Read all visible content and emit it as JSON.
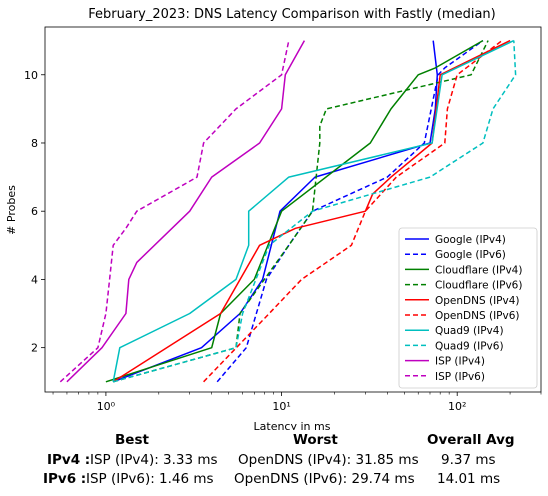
{
  "chart_data": {
    "type": "line",
    "title": "February_2023: DNS Latency Comparison with Fastly (median)",
    "xlabel": "Latency in ms",
    "ylabel": "# Probes",
    "xscale": "log",
    "xlim": [
      0.45,
      300
    ],
    "ylim": [
      0.7,
      11.4
    ],
    "xticks": [
      {
        "value": 1,
        "label": "10⁰"
      },
      {
        "value": 10,
        "label": "10¹"
      },
      {
        "value": 100,
        "label": "10²"
      }
    ],
    "yticks": [
      2,
      4,
      6,
      8,
      10
    ],
    "grid": false,
    "legend_position": "lower right",
    "series": [
      {
        "name": "Google (IPv4)",
        "color": "#0000ff",
        "dash": "solid",
        "x": [
          1.1,
          3.5,
          5.8,
          7.8,
          9.8,
          15.5,
          70,
          75,
          77,
          73
        ],
        "y": [
          1,
          2,
          3,
          4,
          6,
          7,
          8,
          9,
          10,
          11
        ]
      },
      {
        "name": "Google (IPv6)",
        "color": "#0000ff",
        "dash": "dashed",
        "x": [
          4.3,
          6.3,
          8.2,
          11,
          15,
          40,
          65,
          78,
          85,
          140
        ],
        "y": [
          1,
          2,
          4,
          5,
          6,
          7,
          8,
          10,
          10.2,
          11
        ]
      },
      {
        "name": "Cloudflare (IPv4)",
        "color": "#008000",
        "dash": "solid",
        "x": [
          1.0,
          4.0,
          4.5,
          7.0,
          10,
          32,
          42,
          60,
          75,
          140
        ],
        "y": [
          1,
          2,
          3,
          4,
          6,
          8,
          9,
          10,
          10.2,
          11
        ]
      },
      {
        "name": "Cloudflare (IPv6)",
        "color": "#008000",
        "dash": "dashed",
        "x": [
          1.1,
          5.5,
          5.8,
          11,
          15,
          16.5,
          16.5,
          18,
          120,
          150
        ],
        "y": [
          1,
          2,
          3,
          5,
          6,
          8,
          8.5,
          9,
          10,
          11
        ]
      },
      {
        "name": "OpenDNS (IPv4)",
        "color": "#ff0000",
        "dash": "solid",
        "x": [
          1.1,
          4.5,
          7.5,
          12,
          30,
          33,
          42,
          72,
          80,
          200
        ],
        "y": [
          1,
          3,
          5,
          5.5,
          6,
          6.5,
          7,
          8,
          10,
          11
        ]
      },
      {
        "name": "OpenDNS (IPv6)",
        "color": "#ff0000",
        "dash": "dashed",
        "x": [
          3.6,
          8.5,
          13,
          25,
          30,
          45,
          85,
          88,
          100,
          180
        ],
        "y": [
          1,
          3,
          4,
          5,
          6,
          7,
          8,
          9,
          10,
          11
        ]
      },
      {
        "name": "Quad9 (IPv4)",
        "color": "#00bfbf",
        "dash": "solid",
        "x": [
          1.1,
          1.2,
          3.0,
          5.5,
          6.5,
          6.5,
          11,
          72,
          82,
          210
        ],
        "y": [
          1,
          2,
          3,
          4,
          5,
          6,
          7,
          8,
          10,
          11
        ]
      },
      {
        "name": "Quad9 (IPv6)",
        "color": "#00bfbf",
        "dash": "dashed",
        "x": [
          1.1,
          5.5,
          6.0,
          8.5,
          15,
          70,
          140,
          160,
          215,
          210
        ],
        "y": [
          1,
          2,
          3,
          5,
          6,
          7,
          8,
          9,
          10,
          11
        ]
      },
      {
        "name": "ISP (IPv4)",
        "color": "#bf00bf",
        "dash": "solid",
        "x": [
          0.6,
          0.95,
          1.3,
          1.35,
          1.5,
          3.0,
          4.0,
          7.5,
          10,
          10.5,
          13.5
        ],
        "y": [
          1,
          2,
          3,
          4,
          4.5,
          6,
          7,
          8,
          9,
          10,
          11
        ]
      },
      {
        "name": "ISP (IPv6)",
        "color": "#bf00bf",
        "dash": "dashed",
        "x": [
          0.55,
          0.9,
          1.0,
          1.05,
          1.1,
          1.3,
          1.5,
          3.3,
          3.6,
          5.5,
          10,
          11
        ],
        "y": [
          1,
          2,
          3,
          4,
          5,
          5.5,
          6,
          7,
          8,
          9,
          10,
          11
        ]
      }
    ]
  },
  "summary": {
    "headers": {
      "best": "Best",
      "worst": "Worst",
      "avg": "Overall Avg"
    },
    "rows": [
      {
        "label": "IPv4 :",
        "best": "ISP (IPv4): 3.33 ms",
        "worst": "OpenDNS (IPv4): 31.85 ms",
        "avg": "9.37 ms"
      },
      {
        "label": "IPv6 :",
        "best": "ISP (IPv6): 1.46 ms",
        "worst": "OpenDNS (IPv6): 29.74 ms",
        "avg": "14.01 ms"
      }
    ]
  }
}
